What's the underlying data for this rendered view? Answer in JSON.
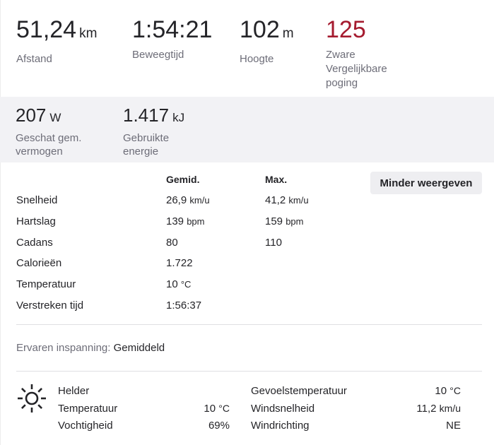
{
  "summary": {
    "distance": {
      "value": "51,24",
      "unit": "km",
      "label": "Afstand"
    },
    "moving_time": {
      "value": "1:54:21",
      "label": "Beweegtijd"
    },
    "elevation": {
      "value": "102",
      "unit": "m",
      "label": "Hoogte"
    },
    "relative_effort": {
      "value": "125",
      "label_line1": "Zware",
      "label_line2": "Vergelijkbare",
      "label_line3": "poging",
      "color": "#a51b2f"
    }
  },
  "secondary": {
    "power": {
      "value": "207",
      "unit": "W",
      "label_line1": "Geschat gem.",
      "label_line2": "vermogen"
    },
    "energy": {
      "value": "1.417",
      "unit": "kJ",
      "label_line1": "Gebruikte",
      "label_line2": "energie"
    }
  },
  "details": {
    "col_avg": "Gemid.",
    "col_max": "Max.",
    "toggle_label": "Minder weergeven",
    "rows": [
      {
        "label": "Snelheid",
        "avg": "26,9",
        "avg_unit": "km/u",
        "max": "41,2",
        "max_unit": "km/u"
      },
      {
        "label": "Hartslag",
        "avg": "139",
        "avg_unit": "bpm",
        "max": "159",
        "max_unit": "bpm"
      },
      {
        "label": "Cadans",
        "avg": "80",
        "max": "110"
      },
      {
        "label": "Calorieën",
        "avg": "1.722"
      },
      {
        "label": "Temperatuur",
        "avg": "10",
        "avg_unit": "°C"
      },
      {
        "label": "Verstreken tijd",
        "avg": "1:56:37"
      }
    ]
  },
  "exertion": {
    "label": "Ervaren inspanning:",
    "value": "Gemiddeld"
  },
  "weather": {
    "icon": "sun-icon",
    "condition": "Helder",
    "temperature_label": "Temperatuur",
    "temperature_value": "10",
    "temperature_unit": "°C",
    "humidity_label": "Vochtigheid",
    "humidity_value": "69%",
    "feels_like_label": "Gevoelstemperatuur",
    "feels_like_value": "10",
    "feels_like_unit": "°C",
    "wind_speed_label": "Windsnelheid",
    "wind_speed_value": "11,2",
    "wind_speed_unit": "km/u",
    "wind_direction_label": "Windrichting",
    "wind_direction_value": "NE"
  }
}
